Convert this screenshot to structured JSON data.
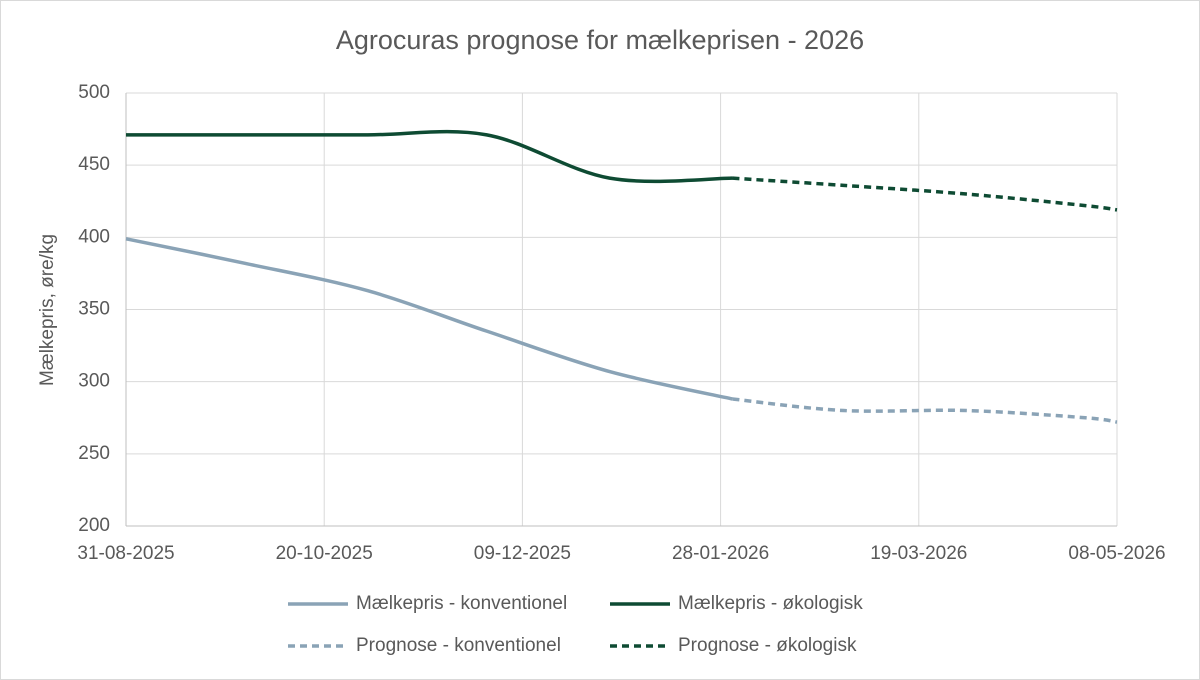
{
  "chart_data": {
    "type": "line",
    "title": "Agrocuras prognose for mælkeprisen - 2026",
    "y_label": "Mælkepris, øre/kg",
    "x": [
      "31-08-2025",
      "30-09-2025",
      "31-10-2025",
      "30-11-2025",
      "31-12-2025",
      "31-01-2026",
      "28-02-2026",
      "31-03-2026",
      "30-04-2026",
      "08-05-2026"
    ],
    "series": [
      {
        "name": "Mælkepris - konventionel",
        "color": "#8aa3b6",
        "dashed": false,
        "values": [
          399,
          382,
          363,
          335,
          307,
          288,
          null,
          null,
          null,
          null
        ]
      },
      {
        "name": "Mælkepris - økologisk",
        "color": "#0e4b33",
        "dashed": false,
        "values": [
          471,
          471,
          471,
          471,
          441,
          441,
          null,
          null,
          null,
          null
        ]
      },
      {
        "name": "Prognose - konventionel",
        "color": "#8aa3b6",
        "dashed": true,
        "values": [
          null,
          null,
          null,
          null,
          null,
          288,
          280,
          280,
          275,
          272
        ]
      },
      {
        "name": "Prognose - økologisk",
        "color": "#0e4b33",
        "dashed": true,
        "values": [
          null,
          null,
          null,
          null,
          null,
          441,
          436,
          430,
          422,
          419
        ]
      }
    ],
    "xlim": [
      "31-08-2025",
      "08-05-2026"
    ],
    "xticks": [
      "31-08-2025",
      "20-10-2025",
      "09-12-2025",
      "28-01-2026",
      "19-03-2026",
      "08-05-2026"
    ],
    "ylim": [
      200,
      500
    ],
    "yticks": [
      200,
      250,
      300,
      350,
      400,
      450,
      500
    ],
    "grid": true,
    "legend": "bottom"
  }
}
